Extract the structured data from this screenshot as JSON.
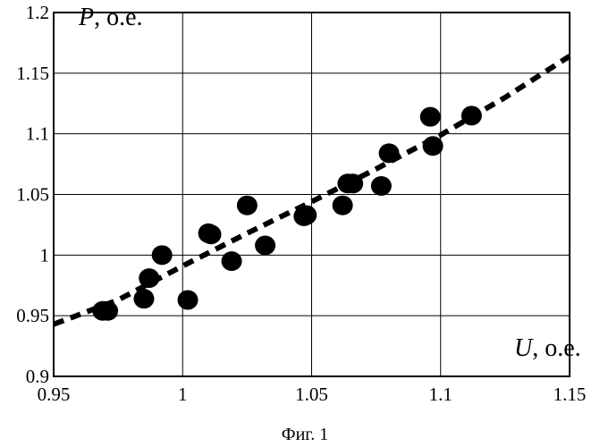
{
  "chart_data": {
    "type": "scatter",
    "xlabel_symbol": "U",
    "xlabel_unit": ", о.е.",
    "ylabel_symbol": "P",
    "ylabel_unit": ", о.е.",
    "caption": "Фиг. 1",
    "xlim": [
      0.95,
      1.15
    ],
    "ylim": [
      0.9,
      1.2
    ],
    "x_ticks": [
      0.95,
      1.0,
      1.05,
      1.1,
      1.15
    ],
    "x_tick_labels": [
      "0.95",
      "1",
      "1.05",
      "1.1",
      "1.15"
    ],
    "y_ticks": [
      0.9,
      0.95,
      1.0,
      1.05,
      1.1,
      1.15,
      1.2
    ],
    "y_tick_labels": [
      "0.9",
      "0.95",
      "1",
      "1.05",
      "1.1",
      "1.15",
      "1.2"
    ],
    "grid": true,
    "series": [
      {
        "kind": "points",
        "x": [
          0.969,
          0.971,
          0.985,
          0.987,
          0.992,
          1.002,
          1.01,
          1.011,
          1.019,
          1.025,
          1.032,
          1.047,
          1.048,
          1.062,
          1.064,
          1.066,
          1.077,
          1.08,
          1.096,
          1.097,
          1.112
        ],
        "y": [
          0.954,
          0.954,
          0.964,
          0.981,
          1.0,
          0.963,
          1.018,
          1.017,
          0.995,
          1.041,
          1.008,
          1.032,
          1.033,
          1.041,
          1.059,
          1.059,
          1.057,
          1.084,
          1.114,
          1.09,
          1.115
        ]
      },
      {
        "kind": "fit",
        "style": "dashed",
        "x": [
          0.95,
          0.975,
          1.0,
          1.025,
          1.05,
          1.075,
          1.1,
          1.125,
          1.15
        ],
        "y": [
          0.943,
          0.963,
          0.991,
          1.018,
          1.044,
          1.071,
          1.099,
          1.13,
          1.164
        ]
      }
    ]
  }
}
